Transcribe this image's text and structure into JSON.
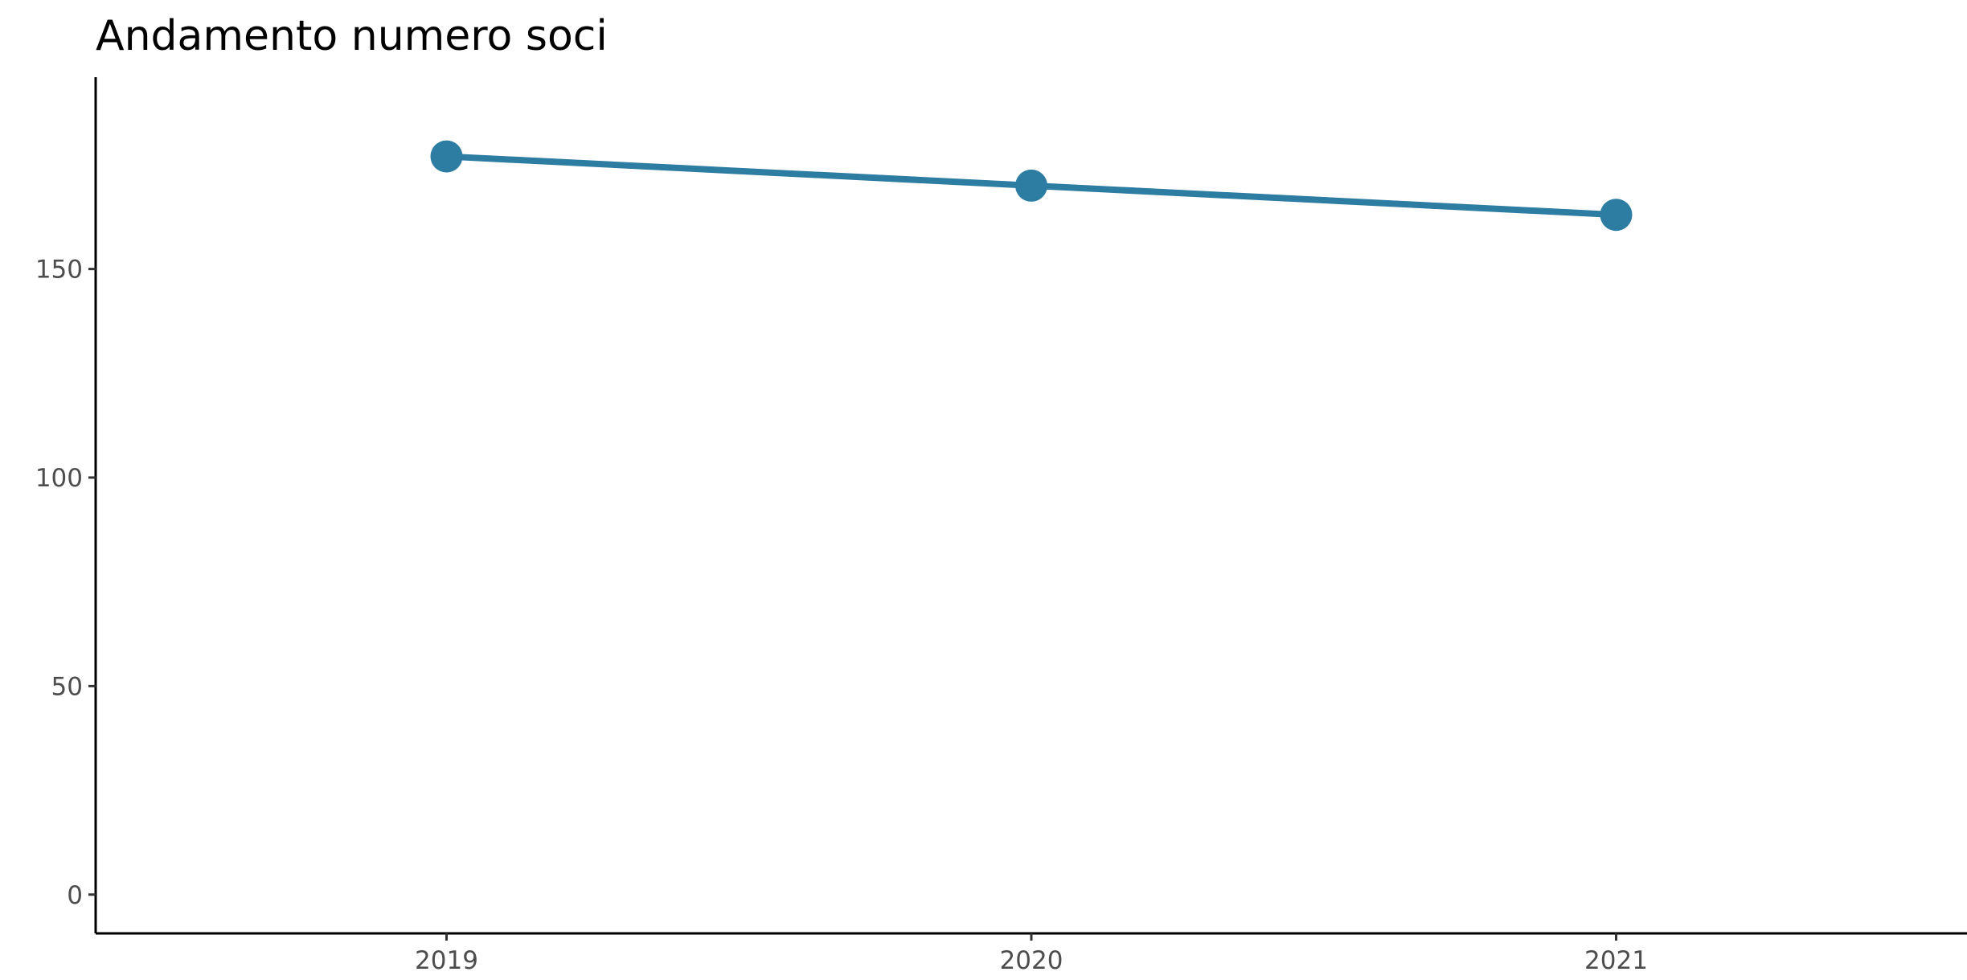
{
  "chart_data": {
    "type": "line",
    "title": "Andamento numero soci",
    "x": [
      2019,
      2020,
      2021
    ],
    "series": [
      {
        "color": "#2d7ca2",
        "values": [
          177,
          170,
          163
        ]
      }
    ],
    "xlim": [
      2018.4,
      2021.6
    ],
    "xticks": [
      2019,
      2020,
      2021
    ],
    "ylim": [
      -9.3,
      196
    ],
    "yticks": [
      0,
      50,
      100,
      150
    ],
    "grid": false
  }
}
